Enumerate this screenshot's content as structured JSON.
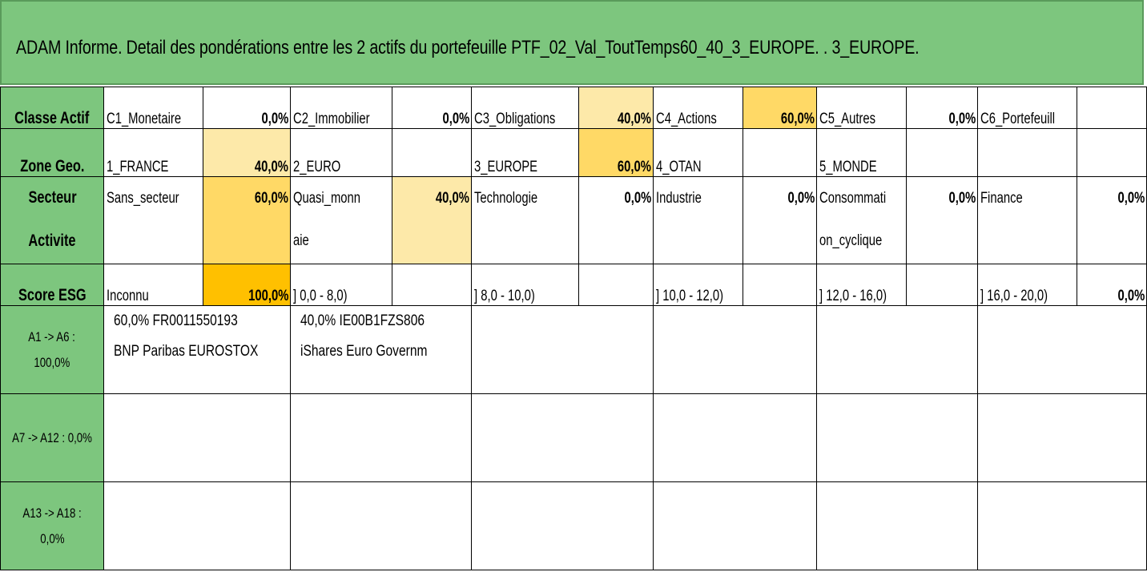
{
  "title": "ADAM Informe. Detail des pondérations entre les 2 actifs du portefeuille PTF_02_Val_ToutTemps60_40_3_EUROPE. . 3_EUROPE.",
  "rows": {
    "classe": {
      "header": "Classe Actif",
      "cells": [
        {
          "label": "C1_Monetaire",
          "value": "0,0%"
        },
        {
          "label": "C2_Immobilier",
          "value": "0,0%"
        },
        {
          "label": "C3_Obligations",
          "value": "40,0%"
        },
        {
          "label": "C4_Actions",
          "value": "60,0%"
        },
        {
          "label": "C5_Autres",
          "value": "0,0%"
        },
        {
          "label": "C6_Portefeuill",
          "value": ""
        }
      ]
    },
    "zone": {
      "header": "Zone Geo.",
      "cells": [
        {
          "label": "1_FRANCE",
          "value": "40,0%"
        },
        {
          "label": "2_EURO",
          "value": ""
        },
        {
          "label": "3_EUROPE",
          "value": "60,0%"
        },
        {
          "label": "4_OTAN",
          "value": ""
        },
        {
          "label": "5_MONDE",
          "value": ""
        },
        {
          "label": "",
          "value": ""
        }
      ]
    },
    "secteur": {
      "header_line1": "Secteur",
      "header_line2": "Activite",
      "cells": [
        {
          "label1": "Sans_secteur",
          "label2": "",
          "value": "60,0%"
        },
        {
          "label1": "Quasi_monn",
          "label2": "aie",
          "value": "40,0%"
        },
        {
          "label1": "Technologie",
          "label2": "",
          "value": "0,0%"
        },
        {
          "label1": "Industrie",
          "label2": "",
          "value": "0,0%"
        },
        {
          "label1": "Consommati",
          "label2": "on_cyclique",
          "value": "0,0%"
        },
        {
          "label1": "Finance",
          "label2": "",
          "value": "0,0%"
        }
      ]
    },
    "esg": {
      "header": "Score ESG",
      "cells": [
        {
          "label": "Inconnu",
          "value": "100,0%"
        },
        {
          "label": "] 0,0 - 8,0)",
          "value": ""
        },
        {
          "label": "] 8,0 - 10,0)",
          "value": ""
        },
        {
          "label": "] 10,0 - 12,0)",
          "value": ""
        },
        {
          "label": "] 12,0 - 16,0)",
          "value": ""
        },
        {
          "label": "] 16,0 - 20,0)",
          "value": "0,0%"
        }
      ]
    }
  },
  "assets": {
    "group1": {
      "label_line1": "A1 -> A6 :",
      "label_line2": "100,0%",
      "items": [
        {
          "line1": "60,0% FR0011550193",
          "line2": "BNP Paribas EUROSTOX"
        },
        {
          "line1": "40,0% IE00B1FZS806",
          "line2": "iShares Euro Governm"
        }
      ]
    },
    "group2": {
      "label": "A7 -> A12 : 0,0%"
    },
    "group3": {
      "label_line1": "A13 -> A18 :",
      "label_line2": "0,0%"
    }
  },
  "colors": {
    "header_green": "#7dc67e",
    "light_yellow": "#fde9a9",
    "mid_yellow": "#ffd966",
    "strong_yellow": "#ffc000"
  }
}
